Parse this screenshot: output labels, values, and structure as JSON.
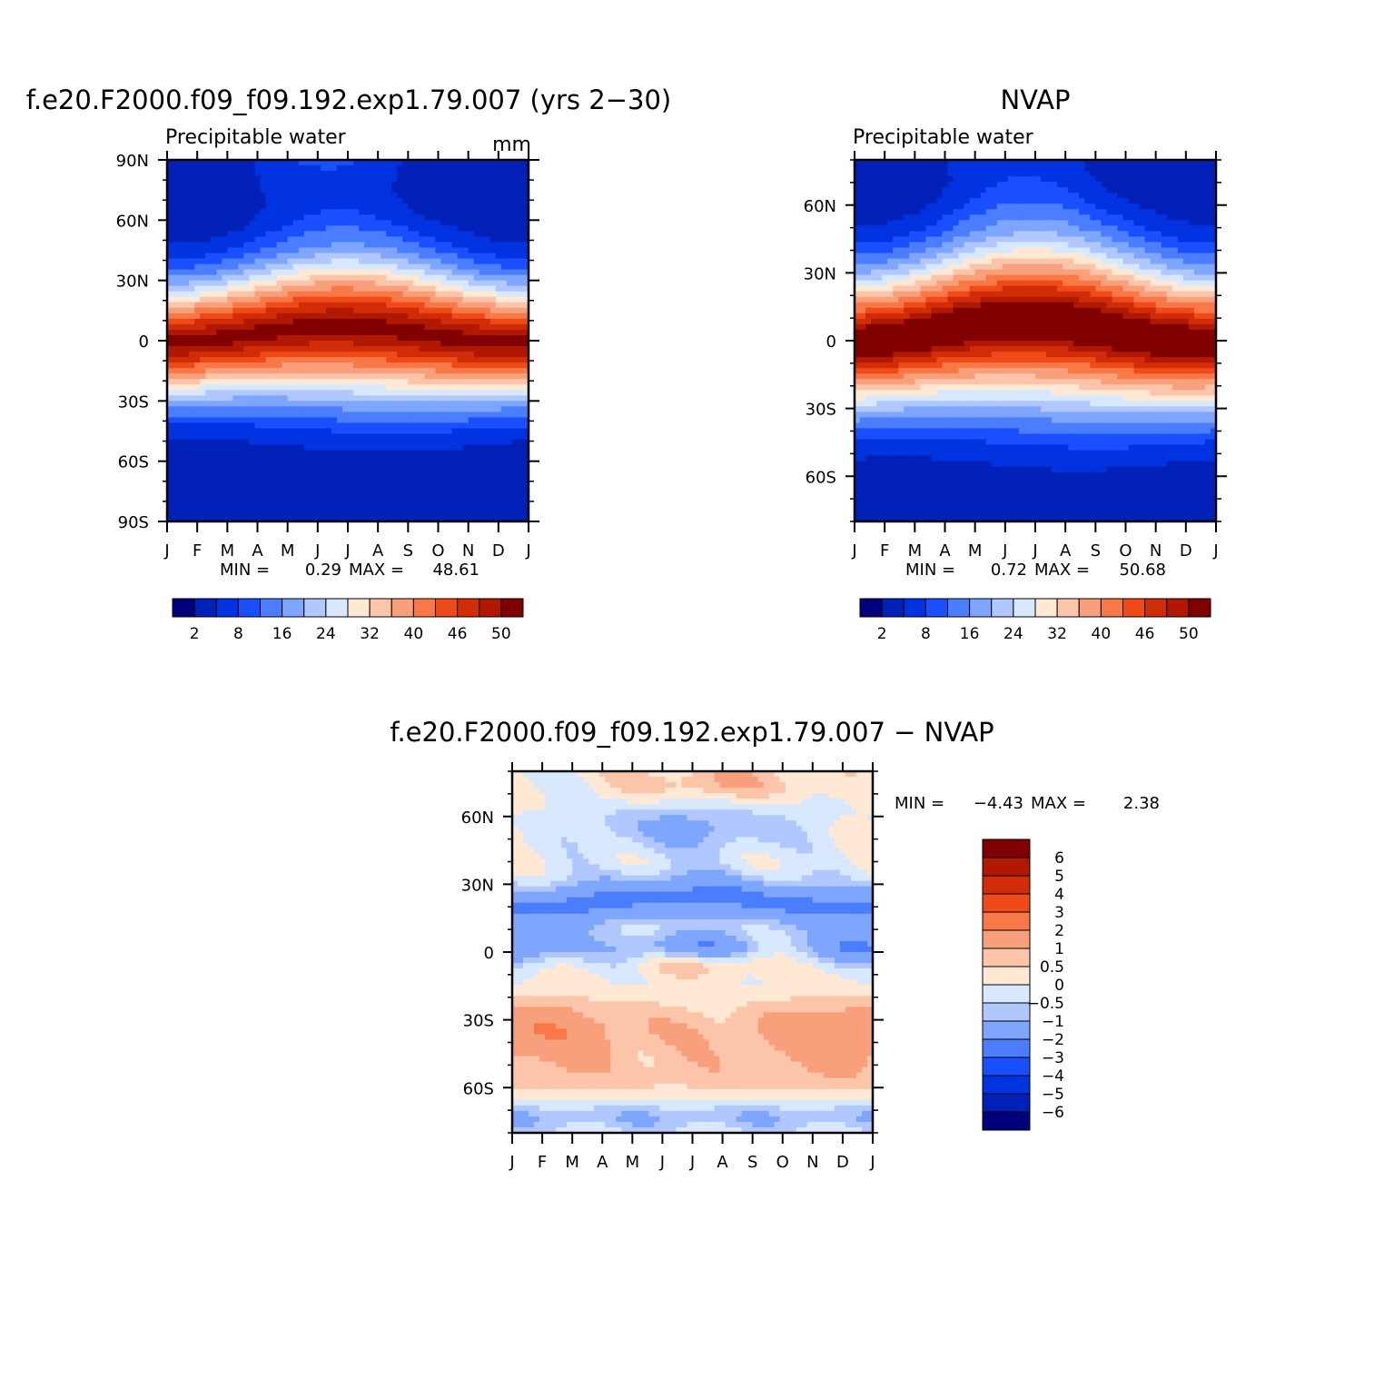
{
  "colors": {
    "abs_palette": [
      "#00007f",
      "#0020b8",
      "#0033e0",
      "#1a4fff",
      "#4a7dff",
      "#7ea6ff",
      "#b0c8ff",
      "#d8e8ff",
      "#ffe8d4",
      "#fcc4a8",
      "#f8a07c",
      "#f87848",
      "#f04a18",
      "#d02c08",
      "#b01800",
      "#800000"
    ],
    "diff_palette": [
      "#00007f",
      "#0020b8",
      "#0033e0",
      "#1a4fff",
      "#4a7dff",
      "#7ea6ff",
      "#b0c8ff",
      "#d8e8ff",
      "#ffe8d4",
      "#fcc4a8",
      "#f8a07c",
      "#f87848",
      "#f04a18",
      "#d02c08",
      "#b01800",
      "#800000"
    ]
  },
  "chart_data": [
    {
      "type": "heatmap",
      "title": "f.e20.F2000.f09_f09.192.exp1.79.007 (yrs 2−30)",
      "subtitle_left": "Precipitable water",
      "subtitle_right": "mm",
      "x_tick_labels": [
        "J",
        "F",
        "M",
        "A",
        "M",
        "J",
        "J",
        "A",
        "S",
        "O",
        "N",
        "D",
        "J"
      ],
      "y_tick_labels": [
        "90N",
        "60N",
        "30N",
        "0",
        "30S",
        "60S",
        "90S"
      ],
      "y_tick_values": [
        90,
        60,
        30,
        0,
        -30,
        -60,
        -90
      ],
      "ylim": [
        -90,
        90
      ],
      "stats": {
        "min_label": "MIN =",
        "min": "0.29",
        "max_label": "MAX =",
        "max": "48.61"
      },
      "colorbar_labels": [
        "2",
        "8",
        "16",
        "24",
        "32",
        "40",
        "46",
        "50"
      ],
      "levels": [
        0,
        2,
        5,
        8,
        12,
        16,
        20,
        24,
        28,
        32,
        36,
        40,
        43,
        46,
        48,
        50
      ],
      "model": {
        "peak": 48.6,
        "peak_lat": 3,
        "peak_amp": 4,
        "base": 34,
        "width": 22,
        "polar_n": 3,
        "polar_s": 0.3
      }
    },
    {
      "type": "heatmap",
      "title": "NVAP",
      "subtitle_left": "Precipitable water",
      "x_tick_labels": [
        "J",
        "F",
        "M",
        "A",
        "M",
        "J",
        "J",
        "A",
        "S",
        "O",
        "N",
        "D",
        "J"
      ],
      "y_tick_labels": [
        "60N",
        "30N",
        "0",
        "30S",
        "60S"
      ],
      "y_tick_values": [
        60,
        30,
        0,
        -30,
        -60
      ],
      "ylim": [
        -80,
        80
      ],
      "stats": {
        "min_label": "MIN =",
        "min": "0.72",
        "max_label": "MAX =",
        "max": "50.68"
      },
      "colorbar_labels": [
        "2",
        "8",
        "16",
        "24",
        "32",
        "40",
        "46",
        "50"
      ],
      "levels": [
        0,
        2,
        5,
        8,
        12,
        16,
        20,
        24,
        28,
        32,
        36,
        40,
        43,
        46,
        48,
        50
      ],
      "model": {
        "peak": 50.7,
        "peak_lat": 4,
        "peak_amp": 5,
        "base": 35,
        "width": 23,
        "polar_n": 4,
        "polar_s": 0.7
      }
    },
    {
      "type": "heatmap",
      "title": "f.e20.F2000.f09_f09.192.exp1.79.007 − NVAP",
      "x_tick_labels": [
        "J",
        "F",
        "M",
        "A",
        "M",
        "J",
        "J",
        "A",
        "S",
        "O",
        "N",
        "D",
        "J"
      ],
      "y_tick_labels": [
        "60N",
        "30N",
        "0",
        "30S",
        "60S"
      ],
      "y_tick_values": [
        60,
        30,
        0,
        -30,
        -60
      ],
      "ylim": [
        -80,
        80
      ],
      "stats": {
        "min_label": "MIN =",
        "min": "−4.43",
        "max_label": "MAX =",
        "max": "2.38"
      },
      "colorbar_labels": [
        "6",
        "5",
        "4",
        "3",
        "2",
        "1",
        "0.5",
        "0",
        "−0.5",
        "−1",
        "−2",
        "−3",
        "−4",
        "−5",
        "−6"
      ],
      "levels": [
        -6,
        -5,
        -4,
        -3,
        -2,
        -1,
        -0.5,
        0,
        0.5,
        1,
        2,
        3,
        4,
        5,
        6
      ]
    }
  ]
}
